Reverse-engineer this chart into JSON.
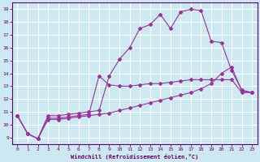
{
  "xlabel": "Windchill (Refroidissement éolien,°C)",
  "background_color": "#cce8f0",
  "grid_color": "#b8d8e8",
  "line_color": "#993399",
  "xlim": [
    -0.5,
    23.5
  ],
  "ylim": [
    8.5,
    19.5
  ],
  "xticks": [
    0,
    1,
    2,
    3,
    4,
    5,
    6,
    7,
    8,
    9,
    10,
    11,
    12,
    13,
    14,
    15,
    16,
    17,
    18,
    19,
    20,
    21,
    22,
    23
  ],
  "yticks": [
    9,
    10,
    11,
    12,
    13,
    14,
    15,
    16,
    17,
    18,
    19
  ],
  "series1_x": [
    0,
    1,
    2,
    3,
    4,
    5,
    6,
    7,
    8,
    9,
    10,
    11,
    12,
    13,
    14,
    15,
    16,
    17,
    18,
    19,
    20,
    21,
    22,
    23
  ],
  "series1_y": [
    10.7,
    9.3,
    8.9,
    10.7,
    10.7,
    10.8,
    10.9,
    11.0,
    11.1,
    13.8,
    15.1,
    16.0,
    17.5,
    17.8,
    18.6,
    17.5,
    18.8,
    19.0,
    18.9,
    16.5,
    16.4,
    14.2,
    12.7,
    12.5
  ],
  "series2_x": [
    0,
    1,
    2,
    3,
    4,
    5,
    6,
    7,
    8,
    9,
    10,
    11,
    12,
    13,
    14,
    15,
    16,
    17,
    18,
    19,
    20,
    21,
    22,
    23
  ],
  "series2_y": [
    10.7,
    9.3,
    8.9,
    10.5,
    10.5,
    10.6,
    10.7,
    10.8,
    13.8,
    13.1,
    13.0,
    13.0,
    13.1,
    13.2,
    13.2,
    13.3,
    13.4,
    13.5,
    13.5,
    13.5,
    13.5,
    13.5,
    12.5,
    12.5
  ],
  "series3_x": [
    0,
    1,
    2,
    3,
    4,
    5,
    6,
    7,
    8,
    9,
    10,
    11,
    12,
    13,
    14,
    15,
    16,
    17,
    18,
    19,
    20,
    21,
    22,
    23
  ],
  "series3_y": [
    10.7,
    9.3,
    8.9,
    10.4,
    10.4,
    10.5,
    10.6,
    10.7,
    10.8,
    10.9,
    11.1,
    11.3,
    11.5,
    11.7,
    11.9,
    12.1,
    12.3,
    12.5,
    12.8,
    13.2,
    14.0,
    14.5,
    12.6,
    12.5
  ]
}
